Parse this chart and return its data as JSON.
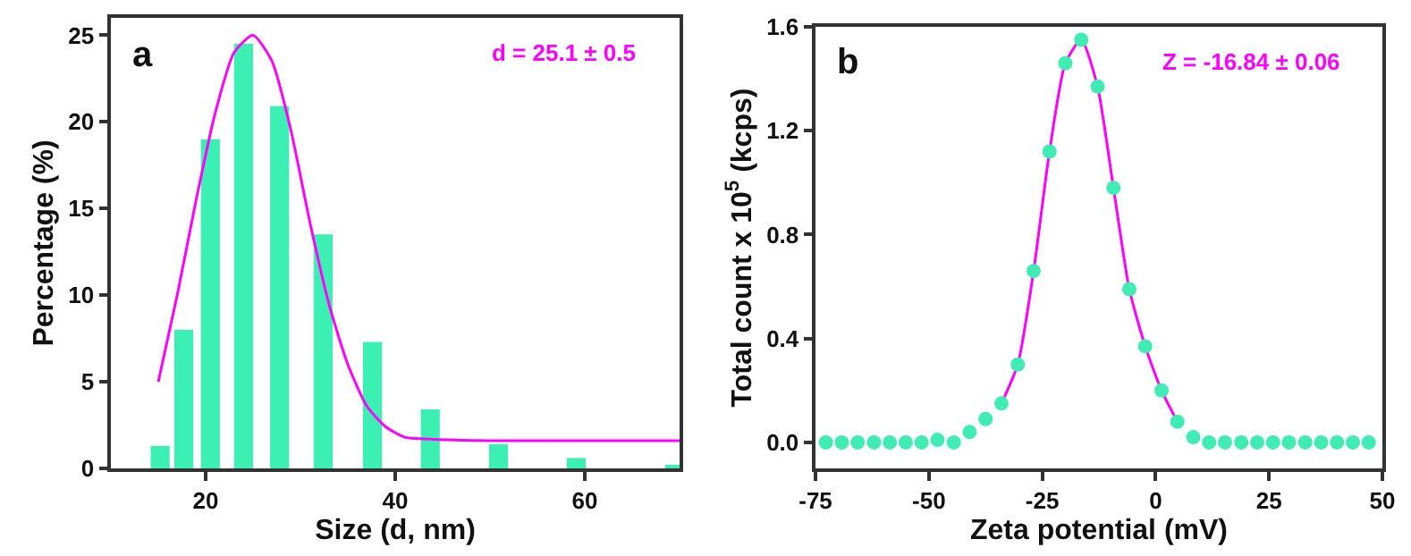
{
  "chart_data": [
    {
      "type": "bar",
      "xlabel": "Size (d, nm)",
      "ylabel": "Percentage (%)",
      "annotations": [
        "a",
        "d = 25.1 ± 0.5"
      ],
      "xlim": [
        10,
        70
      ],
      "ylim": [
        0,
        26
      ],
      "xticks": [
        20,
        40,
        60
      ],
      "yticks": [
        0,
        5,
        10,
        15,
        20,
        25
      ],
      "grid": false,
      "series": [
        {
          "color": "#3cf0b4",
          "x": [
            15.2,
            17.7,
            20.5,
            24,
            27.8,
            32.4,
            37.6,
            43.7,
            50.9,
            59.1,
            69.5
          ],
          "values": [
            1.3,
            8.0,
            19.0,
            24.5,
            20.9,
            13.5,
            7.3,
            3.4,
            1.4,
            0.6,
            0.2
          ]
        },
        {
          "type": "line",
          "color": "#ff00ff",
          "x": [
            15,
            17,
            19,
            21,
            23,
            25,
            27,
            29,
            31,
            33,
            35,
            37,
            39,
            41,
            43,
            50,
            70
          ],
          "values": [
            5,
            10,
            15.5,
            20.5,
            24,
            25,
            23.5,
            19.5,
            14.2,
            9.5,
            6,
            3.6,
            2.4,
            1.8,
            1.7,
            1.6,
            1.6
          ]
        }
      ]
    },
    {
      "type": "scatter",
      "xlabel": "Zeta potential (mV)",
      "ylabel": "Total count x 10$^{5}$ (kcps)",
      "annotations": [
        "b",
        "Z = -16.84 ± 0.06"
      ],
      "xlim": [
        -75,
        50
      ],
      "ylim": [
        -0.1,
        1.6
      ],
      "xticks": [
        -75,
        -50,
        -25,
        0,
        25,
        50
      ],
      "yticks": [
        {
          "value": 0,
          "label": "0.0"
        },
        {
          "value": 0.4,
          "label": "0.4"
        },
        {
          "value": 0.8,
          "label": "0.8"
        },
        {
          "value": 1.2,
          "label": "1.2"
        },
        {
          "value": 1.6,
          "label": "1.6"
        }
      ],
      "grid": false,
      "series": [
        {
          "type": "line",
          "color": "#ff00ff",
          "x": [
            -34.0,
            -30.4,
            -26.9,
            -23.4,
            -19.9,
            -16.4,
            -12.8,
            -9.3,
            -5.8,
            -2.3,
            1.3,
            4.8
          ],
          "values": [
            0.15,
            0.3,
            0.66,
            1.12,
            1.46,
            1.55,
            1.37,
            0.98,
            0.59,
            0.37,
            0.2,
            0.08
          ]
        },
        {
          "color": "#40ebb4",
          "marker": "circle",
          "x": [
            -72.7,
            -69.2,
            -65.7,
            -62.1,
            -58.6,
            -55.1,
            -51.6,
            -48.1,
            -44.5,
            -41.0,
            -37.5,
            -34.0,
            -30.4,
            -26.9,
            -23.4,
            -19.9,
            -16.4,
            -12.8,
            -9.3,
            -5.8,
            -2.3,
            1.3,
            4.8,
            8.3,
            11.8,
            15.3,
            18.9,
            22.4,
            25.9,
            29.4,
            33.0,
            36.5,
            40.0,
            43.5,
            47.0
          ],
          "values": [
            0,
            0,
            0,
            0,
            0,
            0,
            0,
            0.01,
            0,
            0.04,
            0.09,
            0.15,
            0.3,
            0.66,
            1.12,
            1.46,
            1.55,
            1.37,
            0.98,
            0.59,
            0.37,
            0.2,
            0.08,
            0.02,
            0,
            0,
            0,
            0,
            0,
            0,
            0,
            0,
            0,
            0,
            0
          ]
        }
      ]
    }
  ]
}
